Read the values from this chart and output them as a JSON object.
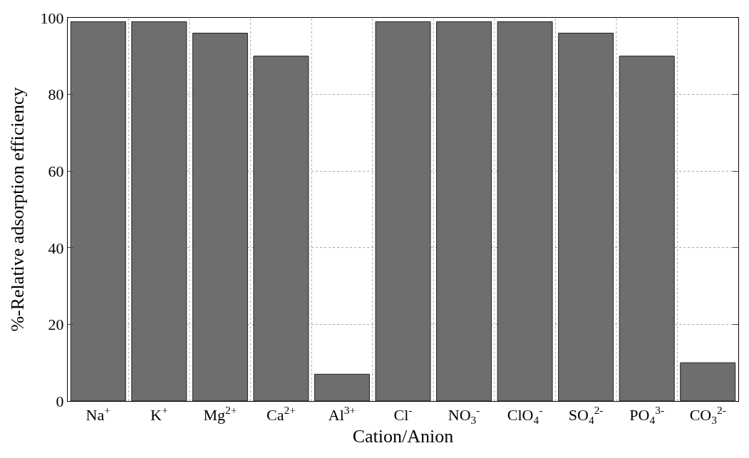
{
  "chart_data": {
    "type": "bar",
    "xlabel": "Cation/Anion",
    "ylabel": "%-Relative adsorption efficiency",
    "categories": [
      "Na$^{+}$",
      "K$^{+}$",
      "Mg$^{2+}$",
      "Ca$^{2+}$",
      "Al$^{3+}$",
      "Cl$^{-}$",
      "NO$_{3}$$^{-}$",
      "ClO$_{4}$$^{-}$",
      "SO$_{4}$$^{2-}$",
      "PO$_{4}$$^{3-}$",
      "CO$_{3}$$^{2-}$"
    ],
    "values": [
      99,
      99,
      96,
      90,
      7,
      99,
      99,
      99,
      96,
      90,
      10
    ],
    "color": "#6e6e6e",
    "ylim": [
      0,
      100
    ],
    "yticks": [
      0,
      20,
      40,
      60,
      80,
      100
    ],
    "grid": true
  }
}
